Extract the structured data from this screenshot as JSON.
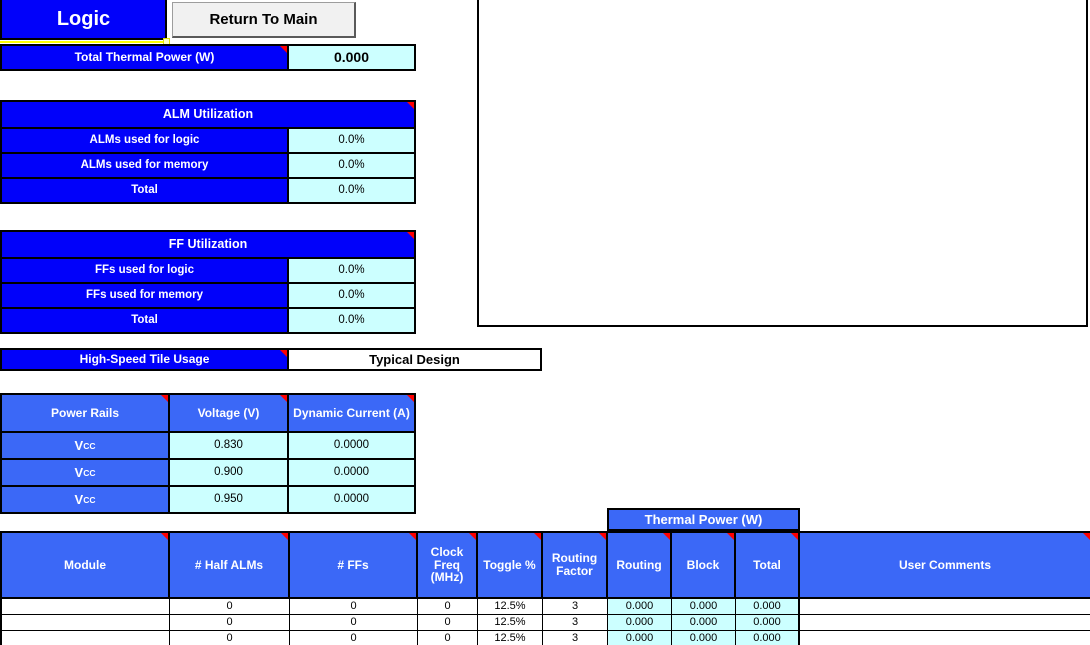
{
  "header": {
    "title": "Logic",
    "return_button_label": "Return To Main"
  },
  "total_thermal_power": {
    "label": "Total Thermal Power (W)",
    "value": "0.000"
  },
  "alm_utilization": {
    "title": "ALM Utilization",
    "rows": [
      {
        "label": "ALMs used for logic",
        "value": "0.0%"
      },
      {
        "label": "ALMs used for memory",
        "value": "0.0%"
      },
      {
        "label": "Total",
        "value": "0.0%"
      }
    ]
  },
  "ff_utilization": {
    "title": "FF Utilization",
    "rows": [
      {
        "label": "FFs used for logic",
        "value": "0.0%"
      },
      {
        "label": "FFs used for memory",
        "value": "0.0%"
      },
      {
        "label": "Total",
        "value": "0.0%"
      }
    ]
  },
  "high_speed_tile": {
    "label": "High-Speed Tile Usage",
    "value": "Typical Design"
  },
  "power_rails": {
    "headers": {
      "rail": "Power Rails",
      "voltage": "Voltage (V)",
      "current": "Dynamic Current (A)"
    },
    "rows": [
      {
        "rail": "V",
        "rail_sub": "CC",
        "voltage": "0.830",
        "current": "0.0000"
      },
      {
        "rail": "V",
        "rail_sub": "CC",
        "voltage": "0.900",
        "current": "0.0000"
      },
      {
        "rail": "V",
        "rail_sub": "CC",
        "voltage": "0.950",
        "current": "0.0000"
      }
    ]
  },
  "module_table": {
    "thermal_power_group_header": "Thermal Power (W)",
    "headers": {
      "module": "Module",
      "half_alms": "# Half ALMs",
      "ffs": "# FFs",
      "clock_freq": "Clock Freq (MHz)",
      "toggle": "Toggle %",
      "routing_factor": "Routing Factor",
      "routing": "Routing",
      "block": "Block",
      "total": "Total",
      "user_comments": "User Comments"
    },
    "rows": [
      {
        "module": "",
        "half_alms": "0",
        "ffs": "0",
        "clock_freq": "0",
        "toggle": "12.5%",
        "routing_factor": "3",
        "routing": "0.000",
        "block": "0.000",
        "total": "0.000",
        "comments": ""
      },
      {
        "module": "",
        "half_alms": "0",
        "ffs": "0",
        "clock_freq": "0",
        "toggle": "12.5%",
        "routing_factor": "3",
        "routing": "0.000",
        "block": "0.000",
        "total": "0.000",
        "comments": ""
      },
      {
        "module": "",
        "half_alms": "0",
        "ffs": "0",
        "clock_freq": "0",
        "toggle": "12.5%",
        "routing_factor": "3",
        "routing": "0.000",
        "block": "0.000",
        "total": "0.000",
        "comments": ""
      }
    ]
  },
  "colors": {
    "section_blue": "#0101FA",
    "table_blue": "#3B68F7",
    "readonly_cyan": "#CCFFFF",
    "comment_marker_red": "#FF0000",
    "title_underline_yellow": "#FFFF00"
  }
}
